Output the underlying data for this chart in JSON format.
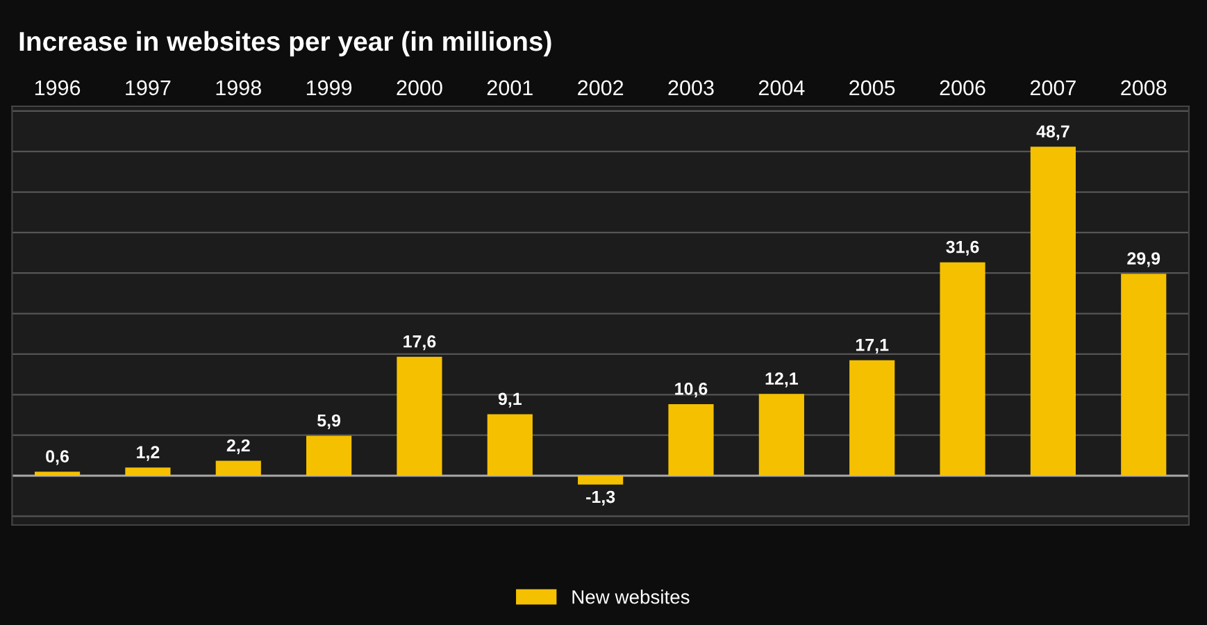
{
  "chart_data": {
    "type": "bar",
    "title": "Increase in websites per year (in millions)",
    "categories": [
      "1996",
      "1997",
      "1998",
      "1999",
      "2000",
      "2001",
      "2002",
      "2003",
      "2004",
      "2005",
      "2006",
      "2007",
      "2008"
    ],
    "series": [
      {
        "name": "New websites",
        "color": "#f5c000",
        "values": [
          0.6,
          1.2,
          2.2,
          5.9,
          17.6,
          9.1,
          -1.3,
          10.6,
          12.1,
          17.1,
          31.6,
          48.7,
          29.9
        ],
        "value_labels": [
          "0,6",
          "1,2",
          "2,2",
          "5,9",
          "17,6",
          "9,1",
          "-1,3",
          "10,6",
          "12,1",
          "17,1",
          "31,6",
          "48,7",
          "29,9"
        ]
      }
    ],
    "grid": "y",
    "legend": "bottom",
    "tick_labels": "x"
  }
}
